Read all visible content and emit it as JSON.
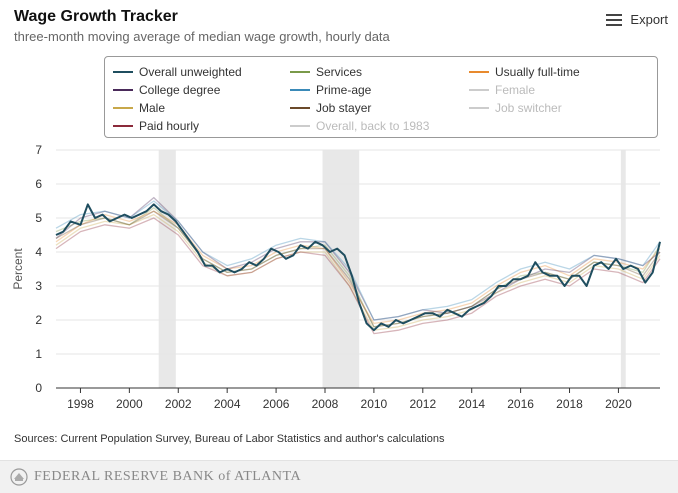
{
  "header": {
    "title": "Wage Growth Tracker",
    "subtitle": "three-month moving average of median wage growth, hourly data",
    "export_label": "Export"
  },
  "legend": {
    "items": [
      {
        "label": "Overall unweighted",
        "color": "#1f4e5f",
        "active": true
      },
      {
        "label": "Services",
        "color": "#7a9a4a",
        "active": true
      },
      {
        "label": "Usually full-time",
        "color": "#e88a2e",
        "active": true
      },
      {
        "label": "College degree",
        "color": "#4a2a5a",
        "active": true
      },
      {
        "label": "Prime-age",
        "color": "#3a8ab8",
        "active": true
      },
      {
        "label": "Female",
        "color": "#cccccc",
        "active": false
      },
      {
        "label": "Male",
        "color": "#c8a84a",
        "active": true
      },
      {
        "label": "Job stayer",
        "color": "#6b4a2a",
        "active": true
      },
      {
        "label": "Job switcher",
        "color": "#cccccc",
        "active": false
      },
      {
        "label": "Paid hourly",
        "color": "#8b2a3a",
        "active": true
      },
      {
        "label": "Overall, back to 1983",
        "color": "#cccccc",
        "active": false
      }
    ]
  },
  "chart_data": {
    "type": "line",
    "ylabel": "Percent",
    "ylim": [
      0,
      7
    ],
    "yticks": [
      0,
      1,
      2,
      3,
      4,
      5,
      6,
      7
    ],
    "xlim": [
      1997.0,
      2021.7
    ],
    "xticks": [
      "1998",
      "2000",
      "2002",
      "2004",
      "2006",
      "2008",
      "2010",
      "2012",
      "2014",
      "2016",
      "2018",
      "2020"
    ],
    "grid": "horizontal",
    "recessions": [
      [
        2001.2,
        2001.9
      ],
      [
        2007.9,
        2009.4
      ],
      [
        2020.1,
        2020.3
      ]
    ],
    "series": [
      {
        "name": "Overall unweighted",
        "color": "#1f4e5f",
        "x": [
          1997.0,
          1997.3,
          1997.6,
          1998.0,
          1998.3,
          1998.6,
          1998.9,
          1999.2,
          1999.5,
          1999.8,
          2000.1,
          2000.4,
          2000.7,
          2001.0,
          2001.3,
          2001.6,
          2001.9,
          2002.2,
          2002.5,
          2002.8,
          2003.1,
          2003.4,
          2003.7,
          2004.0,
          2004.3,
          2004.6,
          2004.9,
          2005.2,
          2005.5,
          2005.8,
          2006.1,
          2006.4,
          2006.7,
          2007.0,
          2007.3,
          2007.6,
          2007.9,
          2008.2,
          2008.5,
          2008.8,
          2009.1,
          2009.4,
          2009.7,
          2010.0,
          2010.3,
          2010.6,
          2010.9,
          2011.2,
          2011.5,
          2011.8,
          2012.1,
          2012.4,
          2012.7,
          2013.0,
          2013.3,
          2013.6,
          2013.9,
          2014.2,
          2014.5,
          2014.8,
          2015.1,
          2015.4,
          2015.7,
          2016.0,
          2016.3,
          2016.6,
          2016.9,
          2017.2,
          2017.5,
          2017.8,
          2018.1,
          2018.4,
          2018.7,
          2019.0,
          2019.3,
          2019.6,
          2019.9,
          2020.2,
          2020.5,
          2020.8,
          2021.1,
          2021.4,
          2021.7
        ],
        "values": [
          4.5,
          4.6,
          4.9,
          4.8,
          5.4,
          5.0,
          5.1,
          4.9,
          5.0,
          5.1,
          5.0,
          5.1,
          5.2,
          5.4,
          5.2,
          5.1,
          4.9,
          4.6,
          4.3,
          4.0,
          3.6,
          3.6,
          3.4,
          3.5,
          3.4,
          3.5,
          3.7,
          3.6,
          3.8,
          4.1,
          4.0,
          3.8,
          3.9,
          4.2,
          4.1,
          4.3,
          4.2,
          4.0,
          4.1,
          3.9,
          3.3,
          2.5,
          1.9,
          1.7,
          1.9,
          1.8,
          2.0,
          1.9,
          2.0,
          2.1,
          2.2,
          2.2,
          2.1,
          2.3,
          2.2,
          2.1,
          2.3,
          2.4,
          2.5,
          2.7,
          3.0,
          3.0,
          3.2,
          3.2,
          3.3,
          3.7,
          3.4,
          3.3,
          3.3,
          3.0,
          3.3,
          3.3,
          3.0,
          3.6,
          3.7,
          3.5,
          3.8,
          3.5,
          3.6,
          3.5,
          3.1,
          3.4,
          4.3
        ]
      },
      {
        "name": "Services",
        "color": "#7a9a4a",
        "x": [
          1997.0,
          1998.0,
          1999.0,
          2000.0,
          2001.0,
          2002.0,
          2003.0,
          2004.0,
          2005.0,
          2006.0,
          2007.0,
          2008.0,
          2009.0,
          2010.0,
          2011.0,
          2012.0,
          2013.0,
          2014.0,
          2015.0,
          2016.0,
          2017.0,
          2018.0,
          2019.0,
          2020.0,
          2021.0,
          2021.7
        ],
        "values": [
          4.6,
          4.9,
          5.0,
          4.8,
          5.3,
          4.7,
          3.8,
          3.4,
          3.5,
          3.9,
          4.1,
          4.2,
          3.3,
          1.8,
          1.9,
          2.1,
          2.2,
          2.4,
          2.9,
          3.3,
          3.4,
          3.2,
          3.7,
          3.6,
          3.4,
          4.2
        ]
      },
      {
        "name": "Usually full-time",
        "color": "#e88a2e",
        "x": [
          1997.0,
          1998.0,
          1999.0,
          2000.0,
          2001.0,
          2002.0,
          2003.0,
          2004.0,
          2005.0,
          2006.0,
          2007.0,
          2008.0,
          2009.0,
          2010.0,
          2011.0,
          2012.0,
          2013.0,
          2014.0,
          2015.0,
          2016.0,
          2017.0,
          2018.0,
          2019.0,
          2020.0,
          2021.0,
          2021.7
        ],
        "values": [
          4.3,
          4.8,
          5.1,
          4.9,
          5.2,
          4.8,
          3.9,
          3.5,
          3.6,
          4.0,
          4.2,
          4.1,
          3.1,
          1.9,
          2.0,
          2.2,
          2.3,
          2.5,
          3.0,
          3.4,
          3.6,
          3.3,
          3.8,
          3.7,
          3.5,
          4.1
        ]
      },
      {
        "name": "College degree",
        "color": "#4a2a5a",
        "x": [
          1997.0,
          1998.0,
          1999.0,
          2000.0,
          2001.0,
          2002.0,
          2003.0,
          2004.0,
          2005.0,
          2006.0,
          2007.0,
          2008.0,
          2009.0,
          2010.0,
          2011.0,
          2012.0,
          2013.0,
          2014.0,
          2015.0,
          2016.0,
          2017.0,
          2018.0,
          2019.0,
          2020.0,
          2021.0,
          2021.7
        ],
        "values": [
          4.4,
          5.0,
          5.2,
          5.0,
          5.6,
          4.9,
          4.0,
          3.5,
          3.7,
          4.1,
          4.3,
          4.3,
          3.4,
          2.0,
          2.1,
          2.3,
          2.2,
          2.4,
          2.8,
          3.2,
          3.5,
          3.4,
          3.9,
          3.8,
          3.6,
          4.0
        ]
      },
      {
        "name": "Prime-age",
        "color": "#3a8ab8",
        "x": [
          1997.0,
          1998.0,
          1999.0,
          2000.0,
          2001.0,
          2002.0,
          2003.0,
          2004.0,
          2005.0,
          2006.0,
          2007.0,
          2008.0,
          2009.0,
          2010.0,
          2011.0,
          2012.0,
          2013.0,
          2014.0,
          2015.0,
          2016.0,
          2017.0,
          2018.0,
          2019.0,
          2020.0,
          2021.0,
          2021.7
        ],
        "values": [
          4.7,
          5.1,
          5.2,
          5.0,
          5.5,
          4.9,
          4.0,
          3.6,
          3.8,
          4.2,
          4.4,
          4.3,
          3.5,
          2.0,
          2.1,
          2.3,
          2.4,
          2.6,
          3.1,
          3.5,
          3.7,
          3.5,
          3.9,
          3.8,
          3.6,
          4.3
        ]
      },
      {
        "name": "Male",
        "color": "#c8a84a",
        "x": [
          1997.0,
          1998.0,
          1999.0,
          2000.0,
          2001.0,
          2002.0,
          2003.0,
          2004.0,
          2005.0,
          2006.0,
          2007.0,
          2008.0,
          2009.0,
          2010.0,
          2011.0,
          2012.0,
          2013.0,
          2014.0,
          2015.0,
          2016.0,
          2017.0,
          2018.0,
          2019.0,
          2020.0,
          2021.0,
          2021.7
        ],
        "values": [
          4.2,
          4.7,
          4.9,
          4.8,
          5.1,
          4.6,
          3.7,
          3.3,
          3.4,
          3.8,
          4.0,
          4.0,
          3.0,
          1.7,
          1.8,
          2.0,
          2.1,
          2.3,
          2.8,
          3.1,
          3.3,
          3.1,
          3.6,
          3.5,
          3.2,
          3.9
        ]
      },
      {
        "name": "Job stayer",
        "color": "#6b4a2a",
        "x": [
          1997.0,
          1998.0,
          1999.0,
          2000.0,
          2001.0,
          2002.0,
          2003.0,
          2004.0,
          2005.0,
          2006.0,
          2007.0,
          2008.0,
          2009.0,
          2010.0,
          2011.0,
          2012.0,
          2013.0,
          2014.0,
          2015.0,
          2016.0,
          2017.0,
          2018.0,
          2019.0,
          2020.0,
          2021.0,
          2021.7
        ],
        "values": [
          4.4,
          4.8,
          5.0,
          4.8,
          5.2,
          4.7,
          3.8,
          3.4,
          3.5,
          3.9,
          4.1,
          4.1,
          3.2,
          1.8,
          1.9,
          2.1,
          2.2,
          2.4,
          2.9,
          3.2,
          3.4,
          3.2,
          3.7,
          3.6,
          3.3,
          4.0
        ]
      },
      {
        "name": "Paid hourly",
        "color": "#8b2a3a",
        "x": [
          1997.0,
          1998.0,
          1999.0,
          2000.0,
          2001.0,
          2002.0,
          2003.0,
          2004.0,
          2005.0,
          2006.0,
          2007.0,
          2008.0,
          2009.0,
          2010.0,
          2011.0,
          2012.0,
          2013.0,
          2014.0,
          2015.0,
          2016.0,
          2017.0,
          2018.0,
          2019.0,
          2020.0,
          2021.0,
          2021.7
        ],
        "values": [
          4.1,
          4.6,
          4.8,
          4.7,
          5.0,
          4.5,
          3.6,
          3.3,
          3.4,
          3.8,
          4.0,
          3.9,
          3.0,
          1.6,
          1.7,
          1.9,
          2.0,
          2.2,
          2.7,
          3.0,
          3.2,
          3.0,
          3.5,
          3.4,
          3.1,
          3.8
        ]
      }
    ]
  },
  "sources": "Sources: Current Population Survey, Bureau of Labor Statistics and author's calculations",
  "footer": {
    "logo_text": "FEDERAL RESERVE BANK of ATLANTA",
    "seal_icon": "fed-seal-icon"
  }
}
